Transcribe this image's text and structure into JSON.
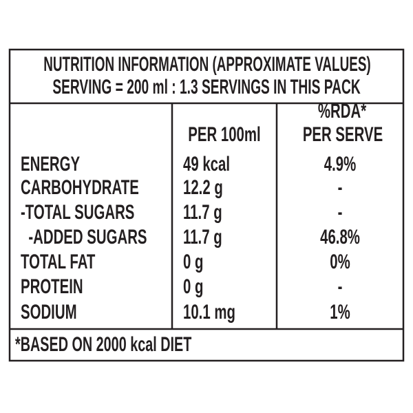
{
  "header": {
    "title": "NUTRITION INFORMATION (APPROXIMATE VALUES)",
    "serving": "SERVING = 200 ml : 1.3 SERVINGS IN THIS PACK"
  },
  "table": {
    "columns": {
      "per_100ml": "PER 100ml",
      "rda": [
        "%RDA*",
        "PER SERVE"
      ]
    },
    "rows": [
      [
        "ENERGY",
        "49 kcal",
        "4.9%"
      ],
      [
        "CARBOHYDRATE",
        "12.2 g",
        "-"
      ],
      [
        "-TOTAL SUGARS",
        "11.7 g",
        "-"
      ],
      [
        "  -ADDED SUGARS",
        "11.7 g",
        "46.8%"
      ],
      [
        "TOTAL FAT",
        "0 g",
        "0%"
      ],
      [
        "PROTEIN",
        "0 g",
        "-"
      ],
      [
        "SODIUM",
        "10.1 mg",
        "1%"
      ]
    ]
  },
  "footer": "*BASED ON 2000 kcal DIET"
}
